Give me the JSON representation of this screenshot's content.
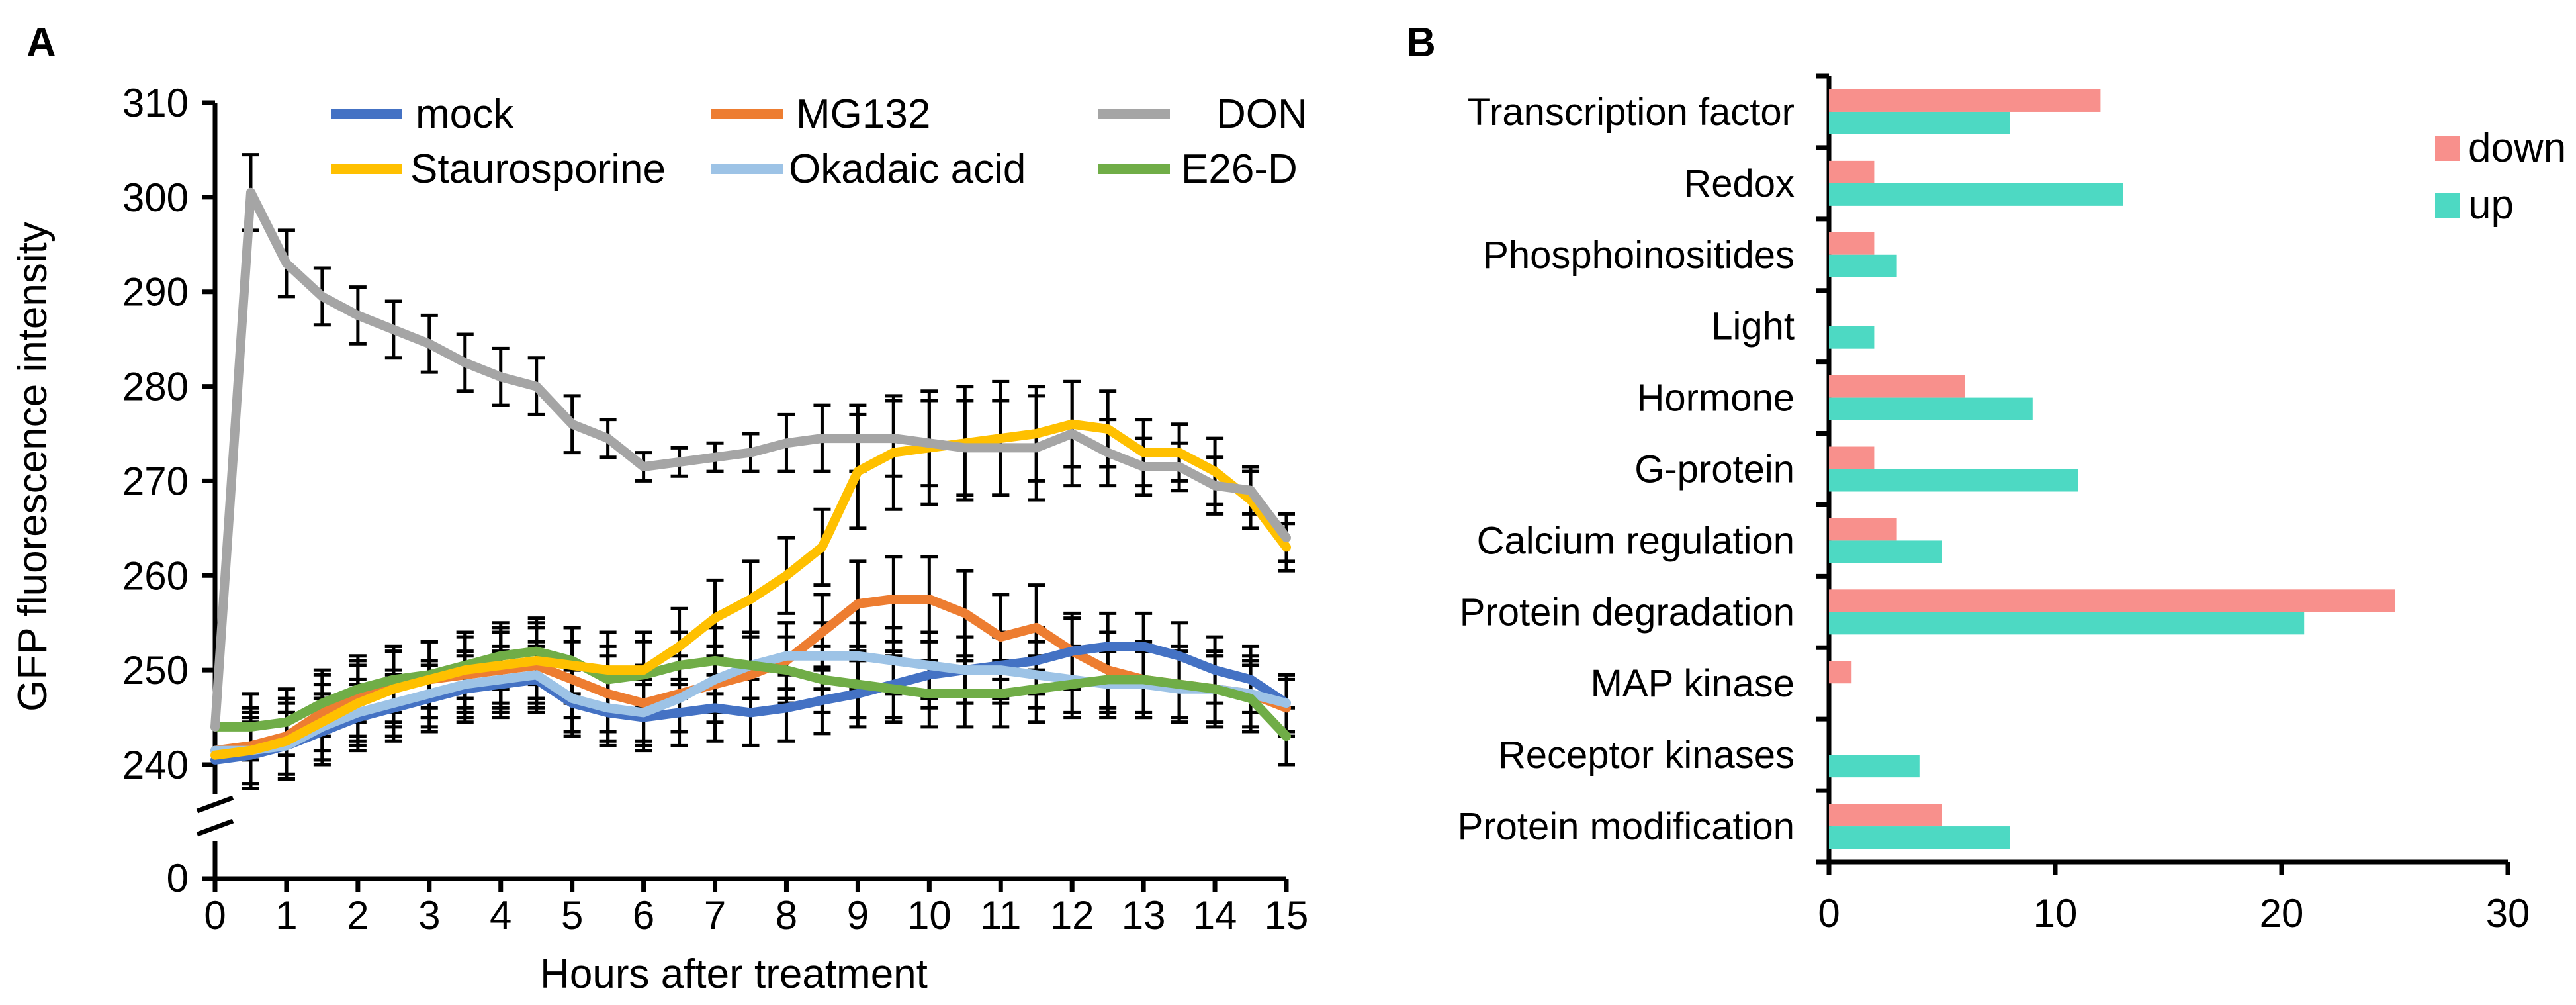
{
  "chart_data": [
    {
      "panel": "A",
      "type": "line",
      "xlabel": "Hours after treatment",
      "ylabel": "GFP fluorescence intensity",
      "xlim": [
        0,
        15
      ],
      "ylim": [
        240,
        310
      ],
      "axis_break": true,
      "x_ticks": [
        "0",
        "1",
        "2",
        "3",
        "4",
        "5",
        "6",
        "7",
        "8",
        "9",
        "10",
        "11",
        "12",
        "13",
        "14",
        "15"
      ],
      "y_ticks": [
        "240",
        "250",
        "260",
        "270",
        "280",
        "290",
        "300",
        "310"
      ],
      "y_zero_label": "0",
      "x": [
        0,
        0.5,
        1,
        1.5,
        2,
        2.5,
        3,
        3.5,
        4,
        4.5,
        5,
        5.5,
        6,
        6.5,
        7,
        7.5,
        8,
        8.5,
        9,
        9.5,
        10,
        10.5,
        11,
        11.5,
        12,
        12.5,
        13,
        13.5,
        14,
        14.5,
        15
      ],
      "legend": [
        {
          "name": "mock",
          "color": "#4472C4"
        },
        {
          "name": "MG132",
          "color": "#ED7D31"
        },
        {
          "name": "DON",
          "color": "#A5A5A5"
        },
        {
          "name": "Staurosporine",
          "color": "#FFC000"
        },
        {
          "name": "Okadaic acid",
          "color": "#9DC3E6"
        },
        {
          "name": "E26-D",
          "color": "#70AD47"
        }
      ],
      "series": [
        {
          "name": "mock",
          "color": "#4472C4",
          "values": [
            240.5,
            241,
            242,
            243.5,
            245,
            246,
            247,
            248,
            248.5,
            249,
            246.5,
            245.5,
            245,
            245.5,
            246,
            245.5,
            246,
            246.8,
            247.5,
            248.5,
            249.5,
            250,
            250.5,
            251,
            252,
            252.5,
            252.5,
            251.5,
            250,
            249,
            246.5
          ],
          "errors": [
            0,
            3.5,
            3.5,
            3.5,
            3.5,
            3.5,
            3.5,
            3.5,
            3.5,
            3.5,
            3.5,
            3.5,
            3.5,
            3.5,
            3.5,
            3.5,
            3.5,
            3.5,
            3.5,
            3.5,
            3.5,
            3.5,
            3.5,
            3.5,
            3.5,
            3.5,
            3.5,
            3.5,
            3.5,
            3.5,
            3
          ]
        },
        {
          "name": "MG132",
          "color": "#ED7D31",
          "values": [
            241.5,
            242,
            243,
            245.5,
            247,
            248.5,
            249,
            249.5,
            250,
            250.5,
            249,
            247.5,
            246.5,
            247.5,
            248.5,
            249.5,
            251,
            254,
            257,
            257.5,
            257.5,
            256,
            253.5,
            254.5,
            252,
            250,
            249,
            248.5,
            248,
            247.5,
            246
          ],
          "errors": [
            0,
            4,
            4,
            4,
            4,
            4,
            4,
            4,
            4,
            4,
            4,
            4,
            4,
            4,
            4,
            4,
            4,
            4,
            4.5,
            4.5,
            4.5,
            4.5,
            4.5,
            4.5,
            4,
            4,
            4,
            4,
            4,
            4,
            3
          ]
        },
        {
          "name": "DON",
          "color": "#A5A5A5",
          "values": [
            244,
            300.5,
            293,
            289.5,
            287.5,
            286,
            284.5,
            282.5,
            281,
            280,
            276,
            274.5,
            271.5,
            272,
            272.5,
            273,
            274,
            274.5,
            274.5,
            274.5,
            274,
            273.5,
            273.5,
            273.5,
            275,
            273,
            271.5,
            271.5,
            269.5,
            269,
            264
          ],
          "errors": [
            0,
            4,
            3.5,
            3,
            3,
            3,
            3,
            3,
            3,
            3,
            3,
            2,
            1.5,
            1.5,
            1.5,
            2,
            3,
            3.5,
            3.5,
            4,
            4.5,
            5,
            5,
            5.5,
            5.5,
            3.5,
            3,
            2.5,
            3,
            2.5,
            2.5
          ]
        },
        {
          "name": "Staurosporine",
          "color": "#FFC000",
          "values": [
            241,
            241.5,
            242.5,
            244.5,
            246.5,
            248,
            249,
            250,
            250.5,
            251,
            250.5,
            250,
            250,
            252.5,
            255.5,
            257.5,
            260,
            263,
            271,
            273,
            273.5,
            274,
            274.5,
            275,
            276,
            275.5,
            273,
            273,
            271,
            268,
            263
          ],
          "errors": [
            0,
            4,
            4,
            4,
            4,
            4,
            4,
            4,
            4,
            4,
            4,
            4,
            4,
            4,
            4,
            4,
            4,
            4,
            6,
            6,
            6,
            6,
            6,
            5,
            4.5,
            4,
            3.5,
            3,
            3.5,
            3,
            2.5
          ]
        },
        {
          "name": "Okadaic acid",
          "color": "#9DC3E6",
          "values": [
            241.5,
            241.5,
            242,
            244,
            245.5,
            246.5,
            247.5,
            248.5,
            249,
            249.5,
            247,
            246,
            245.5,
            247,
            249,
            250.5,
            251.5,
            251.5,
            251.5,
            251,
            250.5,
            250,
            250,
            249.5,
            249,
            248.5,
            248.5,
            248,
            248,
            247.5,
            246.5
          ],
          "errors": [
            0,
            3.5,
            3.5,
            3.5,
            3.5,
            3.5,
            3.5,
            3.5,
            3.5,
            3.5,
            3.5,
            3.5,
            3.5,
            3.5,
            3.5,
            3.5,
            3.5,
            3.5,
            3.5,
            3.5,
            3.5,
            3.5,
            3.5,
            3.5,
            3.5,
            3.5,
            3.5,
            3.5,
            3.5,
            3.5,
            3
          ]
        },
        {
          "name": "E26-D",
          "color": "#70AD47",
          "values": [
            244,
            244,
            244.5,
            246.5,
            248,
            249,
            249.5,
            250.5,
            251.5,
            252,
            251,
            249,
            249.5,
            250.5,
            251,
            250.5,
            250,
            249,
            248.5,
            248,
            247.5,
            247.5,
            247.5,
            248,
            248.5,
            249,
            249,
            248.5,
            248,
            247,
            243
          ],
          "errors": [
            0,
            3.5,
            3.5,
            3.5,
            3.5,
            3.5,
            3.5,
            3.5,
            3.5,
            3.5,
            3.5,
            3.5,
            3.5,
            3.5,
            3.5,
            3.5,
            3.5,
            3.5,
            3.5,
            3.5,
            3.5,
            3.5,
            3.5,
            3.5,
            3.5,
            3.5,
            3.5,
            3.5,
            3.5,
            3.5,
            3
          ]
        }
      ]
    },
    {
      "panel": "B",
      "type": "bar",
      "orientation": "horizontal",
      "xlim": [
        0,
        30
      ],
      "x_ticks": [
        "0",
        "10",
        "20",
        "30"
      ],
      "categories": [
        "Transcription factor",
        "Redox",
        "Phosphoinositides",
        "Light",
        "Hormone",
        "G-protein",
        "Calcium regulation",
        "Protein degradation",
        "MAP kinase",
        "Receptor kinases",
        "Protein modification"
      ],
      "series": [
        {
          "name": "down",
          "color": "#F8908C",
          "values": [
            12,
            2,
            2,
            0,
            6,
            2,
            3,
            25,
            1,
            0,
            5
          ]
        },
        {
          "name": "up",
          "color": "#4DD9C3",
          "values": [
            8,
            13,
            3,
            2,
            9,
            11,
            5,
            21,
            0,
            4,
            8
          ]
        }
      ],
      "legend": [
        {
          "name": "down",
          "color": "#F8908C"
        },
        {
          "name": "up",
          "color": "#4DD9C3"
        }
      ]
    }
  ]
}
